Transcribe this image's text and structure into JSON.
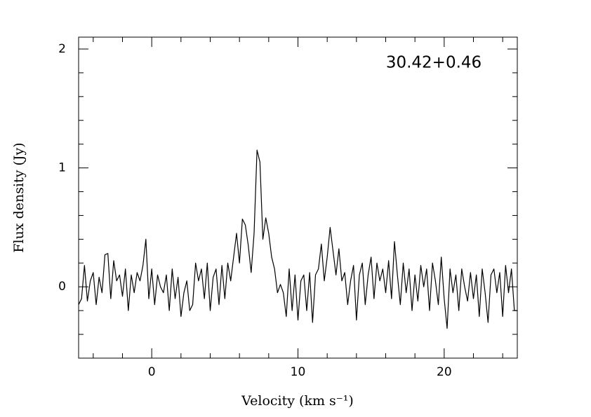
{
  "chart_data": {
    "type": "line",
    "annotation": "30.42+0.46",
    "xlabel": "Velocity (km s⁻¹)",
    "ylabel": "Flux density (Jy)",
    "color": "#000000",
    "xlim": [
      -5,
      25
    ],
    "ylim": [
      -0.6,
      2.1
    ],
    "xticks": [
      0,
      10,
      20
    ],
    "xticks_minor": [
      -4,
      -2,
      2,
      4,
      6,
      8,
      12,
      14,
      16,
      18,
      22,
      24
    ],
    "yticks": [
      0,
      1,
      2
    ],
    "yticks_minor": [
      -0.4,
      -0.2,
      0.2,
      0.4,
      0.6,
      0.8,
      1.2,
      1.4,
      1.6,
      1.8
    ],
    "x": [
      -5,
      -4.8,
      -4.6,
      -4.4,
      -4.2,
      -4,
      -3.8,
      -3.6,
      -3.4,
      -3.2,
      -3,
      -2.8,
      -2.6,
      -2.4,
      -2.2,
      -2,
      -1.8,
      -1.6,
      -1.4,
      -1.2,
      -1,
      -0.8,
      -0.6,
      -0.4,
      -0.2,
      0,
      0.2,
      0.4,
      0.6,
      0.8,
      1,
      1.2,
      1.4,
      1.6,
      1.8,
      2,
      2.2,
      2.4,
      2.6,
      2.8,
      3,
      3.2,
      3.4,
      3.6,
      3.8,
      4,
      4.2,
      4.4,
      4.6,
      4.8,
      5,
      5.2,
      5.4,
      5.6,
      5.8,
      6,
      6.2,
      6.4,
      6.6,
      6.8,
      7,
      7.2,
      7.4,
      7.6,
      7.8,
      8,
      8.2,
      8.4,
      8.6,
      8.8,
      9,
      9.2,
      9.4,
      9.6,
      9.8,
      10,
      10.2,
      10.4,
      10.6,
      10.8,
      11,
      11.2,
      11.4,
      11.6,
      11.8,
      12,
      12.2,
      12.4,
      12.6,
      12.8,
      13,
      13.2,
      13.4,
      13.6,
      13.8,
      14,
      14.2,
      14.4,
      14.6,
      14.8,
      15,
      15.2,
      15.4,
      15.6,
      15.8,
      16,
      16.2,
      16.4,
      16.6,
      16.8,
      17,
      17.2,
      17.4,
      17.6,
      17.8,
      18,
      18.2,
      18.4,
      18.6,
      18.8,
      19,
      19.2,
      19.4,
      19.6,
      19.8,
      20,
      20.2,
      20.4,
      20.6,
      20.8,
      21,
      21.2,
      21.4,
      21.6,
      21.8,
      22,
      22.2,
      22.4,
      22.6,
      22.8,
      23,
      23.2,
      23.4,
      23.6,
      23.8,
      24,
      24.2,
      24.4,
      24.6,
      24.8,
      25
    ],
    "values": [
      -0.15,
      -0.1,
      0.18,
      -0.12,
      0.05,
      0.12,
      -0.15,
      0.08,
      -0.05,
      0.27,
      0.28,
      -0.1,
      0.22,
      0.05,
      0.1,
      -0.08,
      0.15,
      -0.2,
      0.1,
      -0.05,
      0.12,
      0.05,
      0.18,
      0.4,
      -0.1,
      0.15,
      -0.15,
      0.1,
      0.0,
      -0.05,
      0.1,
      -0.2,
      0.15,
      -0.1,
      0.08,
      -0.25,
      -0.05,
      0.05,
      -0.2,
      -0.15,
      0.2,
      0.05,
      0.15,
      -0.1,
      0.2,
      -0.2,
      0.08,
      0.15,
      -0.15,
      0.18,
      -0.1,
      0.2,
      0.05,
      0.25,
      0.45,
      0.2,
      0.57,
      0.52,
      0.35,
      0.12,
      0.45,
      1.15,
      1.05,
      0.4,
      0.58,
      0.45,
      0.25,
      0.15,
      -0.05,
      0.02,
      -0.05,
      -0.25,
      0.15,
      -0.2,
      0.1,
      -0.28,
      0.05,
      0.1,
      -0.2,
      0.12,
      -0.3,
      0.1,
      0.15,
      0.36,
      0.05,
      0.25,
      0.5,
      0.3,
      0.1,
      0.32,
      0.05,
      0.12,
      -0.15,
      0.05,
      0.18,
      -0.28,
      0.1,
      0.2,
      -0.15,
      0.1,
      0.25,
      -0.1,
      0.2,
      0.05,
      0.15,
      -0.05,
      0.22,
      -0.1,
      0.38,
      0.1,
      -0.15,
      0.2,
      -0.05,
      0.15,
      -0.2,
      0.1,
      -0.12,
      0.18,
      0.0,
      0.15,
      -0.2,
      0.2,
      0.05,
      -0.15,
      0.25,
      -0.1,
      -0.35,
      0.15,
      -0.05,
      0.1,
      -0.2,
      0.15,
      0.0,
      -0.12,
      0.12,
      -0.1,
      0.1,
      -0.25,
      0.15,
      -0.05,
      -0.3,
      0.1,
      0.15,
      -0.05,
      0.12,
      -0.25,
      0.18,
      -0.05,
      0.15,
      -0.2,
      -0.2
    ]
  }
}
